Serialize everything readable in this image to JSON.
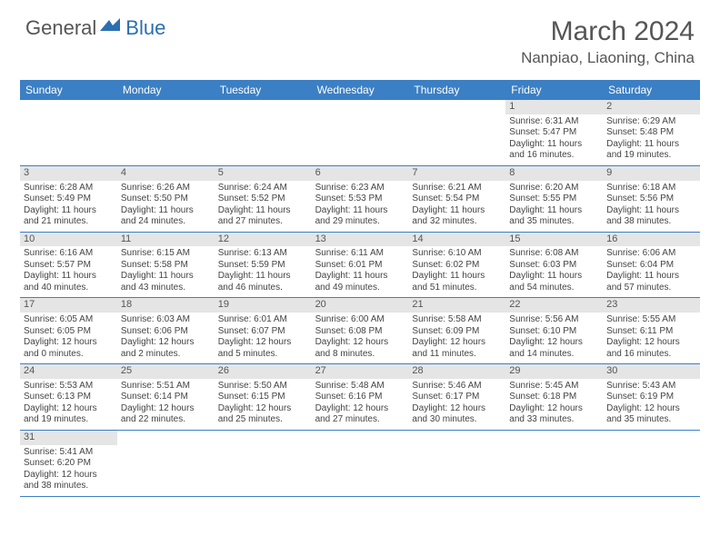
{
  "logo": {
    "general": "General",
    "blue": "Blue"
  },
  "title": "March 2024",
  "location": "Nanpiao, Liaoning, China",
  "colors": {
    "header_bg": "#3b7fc4",
    "header_text": "#ffffff",
    "daynum_bg": "#e5e5e5",
    "border": "#3b7fc4",
    "text": "#444444",
    "logo_blue": "#2b6fb0"
  },
  "weekdays": [
    "Sunday",
    "Monday",
    "Tuesday",
    "Wednesday",
    "Thursday",
    "Friday",
    "Saturday"
  ],
  "weeks": [
    [
      null,
      null,
      null,
      null,
      null,
      {
        "n": "1",
        "sunrise": "Sunrise: 6:31 AM",
        "sunset": "Sunset: 5:47 PM",
        "day1": "Daylight: 11 hours",
        "day2": "and 16 minutes."
      },
      {
        "n": "2",
        "sunrise": "Sunrise: 6:29 AM",
        "sunset": "Sunset: 5:48 PM",
        "day1": "Daylight: 11 hours",
        "day2": "and 19 minutes."
      }
    ],
    [
      {
        "n": "3",
        "sunrise": "Sunrise: 6:28 AM",
        "sunset": "Sunset: 5:49 PM",
        "day1": "Daylight: 11 hours",
        "day2": "and 21 minutes."
      },
      {
        "n": "4",
        "sunrise": "Sunrise: 6:26 AM",
        "sunset": "Sunset: 5:50 PM",
        "day1": "Daylight: 11 hours",
        "day2": "and 24 minutes."
      },
      {
        "n": "5",
        "sunrise": "Sunrise: 6:24 AM",
        "sunset": "Sunset: 5:52 PM",
        "day1": "Daylight: 11 hours",
        "day2": "and 27 minutes."
      },
      {
        "n": "6",
        "sunrise": "Sunrise: 6:23 AM",
        "sunset": "Sunset: 5:53 PM",
        "day1": "Daylight: 11 hours",
        "day2": "and 29 minutes."
      },
      {
        "n": "7",
        "sunrise": "Sunrise: 6:21 AM",
        "sunset": "Sunset: 5:54 PM",
        "day1": "Daylight: 11 hours",
        "day2": "and 32 minutes."
      },
      {
        "n": "8",
        "sunrise": "Sunrise: 6:20 AM",
        "sunset": "Sunset: 5:55 PM",
        "day1": "Daylight: 11 hours",
        "day2": "and 35 minutes."
      },
      {
        "n": "9",
        "sunrise": "Sunrise: 6:18 AM",
        "sunset": "Sunset: 5:56 PM",
        "day1": "Daylight: 11 hours",
        "day2": "and 38 minutes."
      }
    ],
    [
      {
        "n": "10",
        "sunrise": "Sunrise: 6:16 AM",
        "sunset": "Sunset: 5:57 PM",
        "day1": "Daylight: 11 hours",
        "day2": "and 40 minutes."
      },
      {
        "n": "11",
        "sunrise": "Sunrise: 6:15 AM",
        "sunset": "Sunset: 5:58 PM",
        "day1": "Daylight: 11 hours",
        "day2": "and 43 minutes."
      },
      {
        "n": "12",
        "sunrise": "Sunrise: 6:13 AM",
        "sunset": "Sunset: 5:59 PM",
        "day1": "Daylight: 11 hours",
        "day2": "and 46 minutes."
      },
      {
        "n": "13",
        "sunrise": "Sunrise: 6:11 AM",
        "sunset": "Sunset: 6:01 PM",
        "day1": "Daylight: 11 hours",
        "day2": "and 49 minutes."
      },
      {
        "n": "14",
        "sunrise": "Sunrise: 6:10 AM",
        "sunset": "Sunset: 6:02 PM",
        "day1": "Daylight: 11 hours",
        "day2": "and 51 minutes."
      },
      {
        "n": "15",
        "sunrise": "Sunrise: 6:08 AM",
        "sunset": "Sunset: 6:03 PM",
        "day1": "Daylight: 11 hours",
        "day2": "and 54 minutes."
      },
      {
        "n": "16",
        "sunrise": "Sunrise: 6:06 AM",
        "sunset": "Sunset: 6:04 PM",
        "day1": "Daylight: 11 hours",
        "day2": "and 57 minutes."
      }
    ],
    [
      {
        "n": "17",
        "sunrise": "Sunrise: 6:05 AM",
        "sunset": "Sunset: 6:05 PM",
        "day1": "Daylight: 12 hours",
        "day2": "and 0 minutes."
      },
      {
        "n": "18",
        "sunrise": "Sunrise: 6:03 AM",
        "sunset": "Sunset: 6:06 PM",
        "day1": "Daylight: 12 hours",
        "day2": "and 2 minutes."
      },
      {
        "n": "19",
        "sunrise": "Sunrise: 6:01 AM",
        "sunset": "Sunset: 6:07 PM",
        "day1": "Daylight: 12 hours",
        "day2": "and 5 minutes."
      },
      {
        "n": "20",
        "sunrise": "Sunrise: 6:00 AM",
        "sunset": "Sunset: 6:08 PM",
        "day1": "Daylight: 12 hours",
        "day2": "and 8 minutes."
      },
      {
        "n": "21",
        "sunrise": "Sunrise: 5:58 AM",
        "sunset": "Sunset: 6:09 PM",
        "day1": "Daylight: 12 hours",
        "day2": "and 11 minutes."
      },
      {
        "n": "22",
        "sunrise": "Sunrise: 5:56 AM",
        "sunset": "Sunset: 6:10 PM",
        "day1": "Daylight: 12 hours",
        "day2": "and 14 minutes."
      },
      {
        "n": "23",
        "sunrise": "Sunrise: 5:55 AM",
        "sunset": "Sunset: 6:11 PM",
        "day1": "Daylight: 12 hours",
        "day2": "and 16 minutes."
      }
    ],
    [
      {
        "n": "24",
        "sunrise": "Sunrise: 5:53 AM",
        "sunset": "Sunset: 6:13 PM",
        "day1": "Daylight: 12 hours",
        "day2": "and 19 minutes."
      },
      {
        "n": "25",
        "sunrise": "Sunrise: 5:51 AM",
        "sunset": "Sunset: 6:14 PM",
        "day1": "Daylight: 12 hours",
        "day2": "and 22 minutes."
      },
      {
        "n": "26",
        "sunrise": "Sunrise: 5:50 AM",
        "sunset": "Sunset: 6:15 PM",
        "day1": "Daylight: 12 hours",
        "day2": "and 25 minutes."
      },
      {
        "n": "27",
        "sunrise": "Sunrise: 5:48 AM",
        "sunset": "Sunset: 6:16 PM",
        "day1": "Daylight: 12 hours",
        "day2": "and 27 minutes."
      },
      {
        "n": "28",
        "sunrise": "Sunrise: 5:46 AM",
        "sunset": "Sunset: 6:17 PM",
        "day1": "Daylight: 12 hours",
        "day2": "and 30 minutes."
      },
      {
        "n": "29",
        "sunrise": "Sunrise: 5:45 AM",
        "sunset": "Sunset: 6:18 PM",
        "day1": "Daylight: 12 hours",
        "day2": "and 33 minutes."
      },
      {
        "n": "30",
        "sunrise": "Sunrise: 5:43 AM",
        "sunset": "Sunset: 6:19 PM",
        "day1": "Daylight: 12 hours",
        "day2": "and 35 minutes."
      }
    ],
    [
      {
        "n": "31",
        "sunrise": "Sunrise: 5:41 AM",
        "sunset": "Sunset: 6:20 PM",
        "day1": "Daylight: 12 hours",
        "day2": "and 38 minutes."
      },
      null,
      null,
      null,
      null,
      null,
      null
    ]
  ]
}
